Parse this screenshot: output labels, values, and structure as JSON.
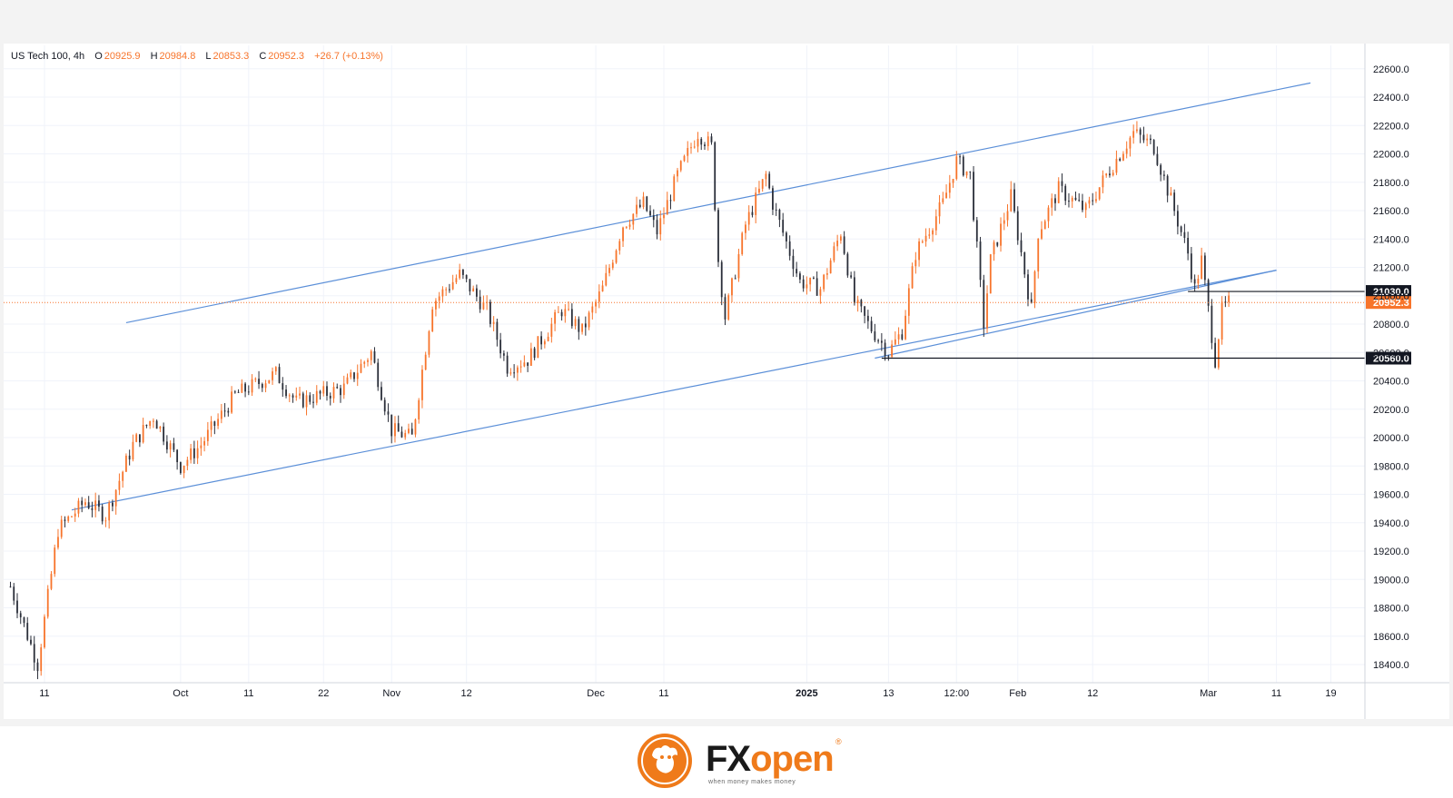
{
  "legend": {
    "symbol": "US Tech 100, 4h",
    "o_label": "O",
    "open": "20925.9",
    "h_label": "H",
    "high": "20984.8",
    "l_label": "L",
    "low": "20853.3",
    "c_label": "C",
    "close": "20952.3",
    "change": "+26.7 (+0.13%)"
  },
  "colors": {
    "up": "#f7742b",
    "down": "#2a2e39",
    "channel": "#5b8fd8",
    "level": "#131722",
    "current_price": "#f7742b",
    "grid": "#f0f3fa",
    "axis_text": "#131722"
  },
  "chart_data": {
    "type": "candlestick",
    "symbol": "US Tech 100",
    "timeframe": "4h",
    "ylim": [
      18250,
      22750
    ],
    "y_ticks": [
      "22600.0",
      "22400.0",
      "22200.0",
      "22000.0",
      "21800.0",
      "21600.0",
      "21400.0",
      "21200.0",
      "21000.0",
      "20800.0",
      "20600.0",
      "20400.0",
      "20200.0",
      "20000.0",
      "19800.0",
      "19600.0",
      "19400.0",
      "19200.0",
      "19000.0",
      "18800.0",
      "18600.0",
      "18400.0"
    ],
    "x_ticks": [
      {
        "label": "11",
        "bold": false,
        "date": "2024-09-11"
      },
      {
        "label": "Oct",
        "bold": false,
        "date": "2024-10-01"
      },
      {
        "label": "11",
        "bold": false,
        "date": "2024-10-11"
      },
      {
        "label": "22",
        "bold": false,
        "date": "2024-10-22"
      },
      {
        "label": "Nov",
        "bold": false,
        "date": "2024-11-01"
      },
      {
        "label": "12",
        "bold": false,
        "date": "2024-11-12"
      },
      {
        "label": "Dec",
        "bold": false,
        "date": "2024-12-01"
      },
      {
        "label": "11",
        "bold": false,
        "date": "2024-12-11"
      },
      {
        "label": "2025",
        "bold": true,
        "date": "2025-01-01"
      },
      {
        "label": "13",
        "bold": false,
        "date": "2025-01-13"
      },
      {
        "label": "12:00",
        "bold": false,
        "date": "2025-01-23"
      },
      {
        "label": "Feb",
        "bold": false,
        "date": "2025-02-01"
      },
      {
        "label": "12",
        "bold": false,
        "date": "2025-02-12"
      },
      {
        "label": "Mar",
        "bold": false,
        "date": "2025-03-01"
      },
      {
        "label": "11",
        "bold": false,
        "date": "2025-03-11"
      },
      {
        "label": "19",
        "bold": false,
        "date": "2025-03-19"
      }
    ],
    "price_path": [
      {
        "date": "2024-09-06",
        "price": 18950
      },
      {
        "date": "2024-09-10",
        "price": 18400
      },
      {
        "date": "2024-09-13",
        "price": 19350
      },
      {
        "date": "2024-09-17",
        "price": 19550
      },
      {
        "date": "2024-09-20",
        "price": 19450
      },
      {
        "date": "2024-09-24",
        "price": 19950
      },
      {
        "date": "2024-09-27",
        "price": 20150
      },
      {
        "date": "2024-10-01",
        "price": 19800
      },
      {
        "date": "2024-10-04",
        "price": 19950
      },
      {
        "date": "2024-10-09",
        "price": 20300
      },
      {
        "date": "2024-10-15",
        "price": 20450
      },
      {
        "date": "2024-10-18",
        "price": 20250
      },
      {
        "date": "2024-10-25",
        "price": 20350
      },
      {
        "date": "2024-10-29",
        "price": 20600
      },
      {
        "date": "2024-11-01",
        "price": 20050
      },
      {
        "date": "2024-11-04",
        "price": 20000
      },
      {
        "date": "2024-11-07",
        "price": 20950
      },
      {
        "date": "2024-11-11",
        "price": 21150
      },
      {
        "date": "2024-11-15",
        "price": 20900
      },
      {
        "date": "2024-11-18",
        "price": 20500
      },
      {
        "date": "2024-11-21",
        "price": 20550
      },
      {
        "date": "2024-11-26",
        "price": 20900
      },
      {
        "date": "2024-11-29",
        "price": 20750
      },
      {
        "date": "2024-12-02",
        "price": 21050
      },
      {
        "date": "2024-12-05",
        "price": 21500
      },
      {
        "date": "2024-12-08",
        "price": 21650
      },
      {
        "date": "2024-12-10",
        "price": 21450
      },
      {
        "date": "2024-12-13",
        "price": 21850
      },
      {
        "date": "2024-12-16",
        "price": 22150
      },
      {
        "date": "2024-12-18",
        "price": 22050
      },
      {
        "date": "2024-12-19",
        "price": 21250
      },
      {
        "date": "2024-12-20",
        "price": 20850
      },
      {
        "date": "2024-12-23",
        "price": 21500
      },
      {
        "date": "2024-12-26",
        "price": 21850
      },
      {
        "date": "2024-12-27",
        "price": 21650
      },
      {
        "date": "2024-12-31",
        "price": 21100
      },
      {
        "date": "2025-01-03",
        "price": 21050
      },
      {
        "date": "2025-01-06",
        "price": 21450
      },
      {
        "date": "2025-01-08",
        "price": 20950
      },
      {
        "date": "2025-01-10",
        "price": 20800
      },
      {
        "date": "2025-01-13",
        "price": 20600
      },
      {
        "date": "2025-01-15",
        "price": 20750
      },
      {
        "date": "2025-01-17",
        "price": 21300
      },
      {
        "date": "2025-01-21",
        "price": 21650
      },
      {
        "date": "2025-01-23",
        "price": 21950
      },
      {
        "date": "2025-01-25",
        "price": 21850
      },
      {
        "date": "2025-01-27",
        "price": 20800
      },
      {
        "date": "2025-01-28",
        "price": 21250
      },
      {
        "date": "2025-01-31",
        "price": 21700
      },
      {
        "date": "2025-02-03",
        "price": 20900
      },
      {
        "date": "2025-02-04",
        "price": 21450
      },
      {
        "date": "2025-02-07",
        "price": 21750
      },
      {
        "date": "2025-02-11",
        "price": 21600
      },
      {
        "date": "2025-02-14",
        "price": 21850
      },
      {
        "date": "2025-02-18",
        "price": 22150
      },
      {
        "date": "2025-02-21",
        "price": 22050
      },
      {
        "date": "2025-02-24",
        "price": 21600
      },
      {
        "date": "2025-02-26",
        "price": 21300
      },
      {
        "date": "2025-02-27",
        "price": 21050
      },
      {
        "date": "2025-02-28",
        "price": 21250
      },
      {
        "date": "2025-03-01",
        "price": 20900
      },
      {
        "date": "2025-03-02",
        "price": 20550
      },
      {
        "date": "2025-03-03",
        "price": 20900
      },
      {
        "date": "2025-03-04",
        "price": 20950
      }
    ],
    "channel_lines": [
      {
        "name": "upper",
        "start": {
          "date": "2024-09-23",
          "price": 20810
        },
        "end": {
          "date": "2025-03-16",
          "price": 22500
        }
      },
      {
        "name": "middle",
        "start": {
          "date": "2025-01-11",
          "price": 20560
        },
        "end": {
          "date": "2025-03-11",
          "price": 21180
        }
      },
      {
        "name": "lower",
        "start": {
          "date": "2024-09-15",
          "price": 19490
        },
        "end": {
          "date": "2025-03-11",
          "price": 21180
        }
      }
    ],
    "horizontal_levels": [
      {
        "price": 21030.0,
        "label": "21030.0",
        "start_date": "2025-02-26"
      },
      {
        "price": 20560.0,
        "label": "20560.0",
        "start_date": "2025-01-12"
      }
    ],
    "current_price": {
      "price": 20952.3,
      "label": "20952.3"
    },
    "hidden_tick": "20600.0"
  },
  "brand": {
    "wordmark_dark": "FX",
    "wordmark_accent": "open",
    "tagline": "when money makes money",
    "registered": "®"
  }
}
